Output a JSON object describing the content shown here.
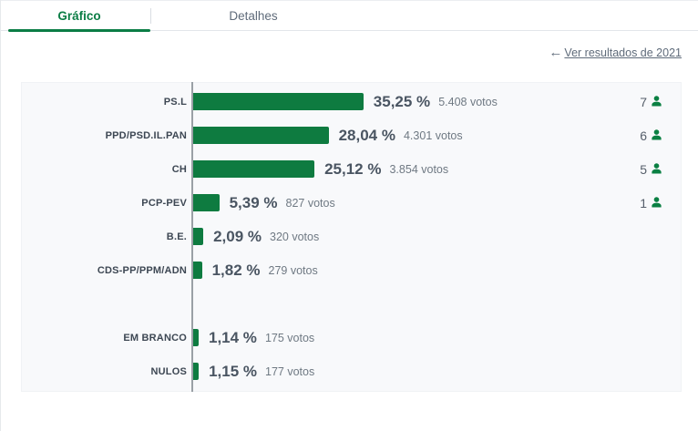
{
  "tabs": [
    {
      "label": "Gráfico",
      "active": true
    },
    {
      "label": "Detalhes",
      "active": false
    }
  ],
  "back_link": {
    "arrow": "←",
    "label": "Ver resultados de 2021"
  },
  "colors": {
    "bar_green": "#0e7b40",
    "icon_green": "#0b8043",
    "tab_green": "#0b7d45"
  },
  "chart_data": {
    "type": "bar",
    "orientation": "horizontal",
    "value_unit": "percent",
    "xlim": [
      0,
      35.25
    ],
    "categories": [
      "PS.L",
      "PPD/PSD.IL.PAN",
      "CH",
      "PCP-PEV",
      "B.E.",
      "CDS-PP/PPM/ADN",
      "EM BRANCO",
      "NULOS"
    ],
    "values": [
      35.25,
      28.04,
      25.12,
      5.39,
      2.09,
      1.82,
      1.14,
      1.15
    ],
    "votes": [
      5408,
      4301,
      3854,
      827,
      320,
      279,
      175,
      177
    ],
    "seats": [
      7,
      6,
      5,
      1,
      null,
      null,
      null,
      null
    ],
    "rows": [
      {
        "party": "PS.L",
        "percent": 35.25,
        "percent_label": "35,25 %",
        "votes_label": "5.408 votos",
        "seats": "7"
      },
      {
        "party": "PPD/PSD.IL.PAN",
        "percent": 28.04,
        "percent_label": "28,04 %",
        "votes_label": "4.301 votos",
        "seats": "6"
      },
      {
        "party": "CH",
        "percent": 25.12,
        "percent_label": "25,12 %",
        "votes_label": "3.854 votos",
        "seats": "5"
      },
      {
        "party": "PCP-PEV",
        "percent": 5.39,
        "percent_label": "5,39 %",
        "votes_label": "827 votos",
        "seats": "1"
      },
      {
        "party": "B.E.",
        "percent": 2.09,
        "percent_label": "2,09 %",
        "votes_label": "320 votos",
        "seats": null
      },
      {
        "party": "CDS-PP/PPM/ADN",
        "percent": 1.82,
        "percent_label": "1,82 %",
        "votes_label": "279 votos",
        "seats": null
      },
      {
        "spacer": true
      },
      {
        "party": "EM BRANCO",
        "percent": 1.14,
        "percent_label": "1,14 %",
        "votes_label": "175 votos",
        "seats": null
      },
      {
        "party": "NULOS",
        "percent": 1.15,
        "percent_label": "1,15 %",
        "votes_label": "177 votos",
        "seats": null
      }
    ]
  }
}
